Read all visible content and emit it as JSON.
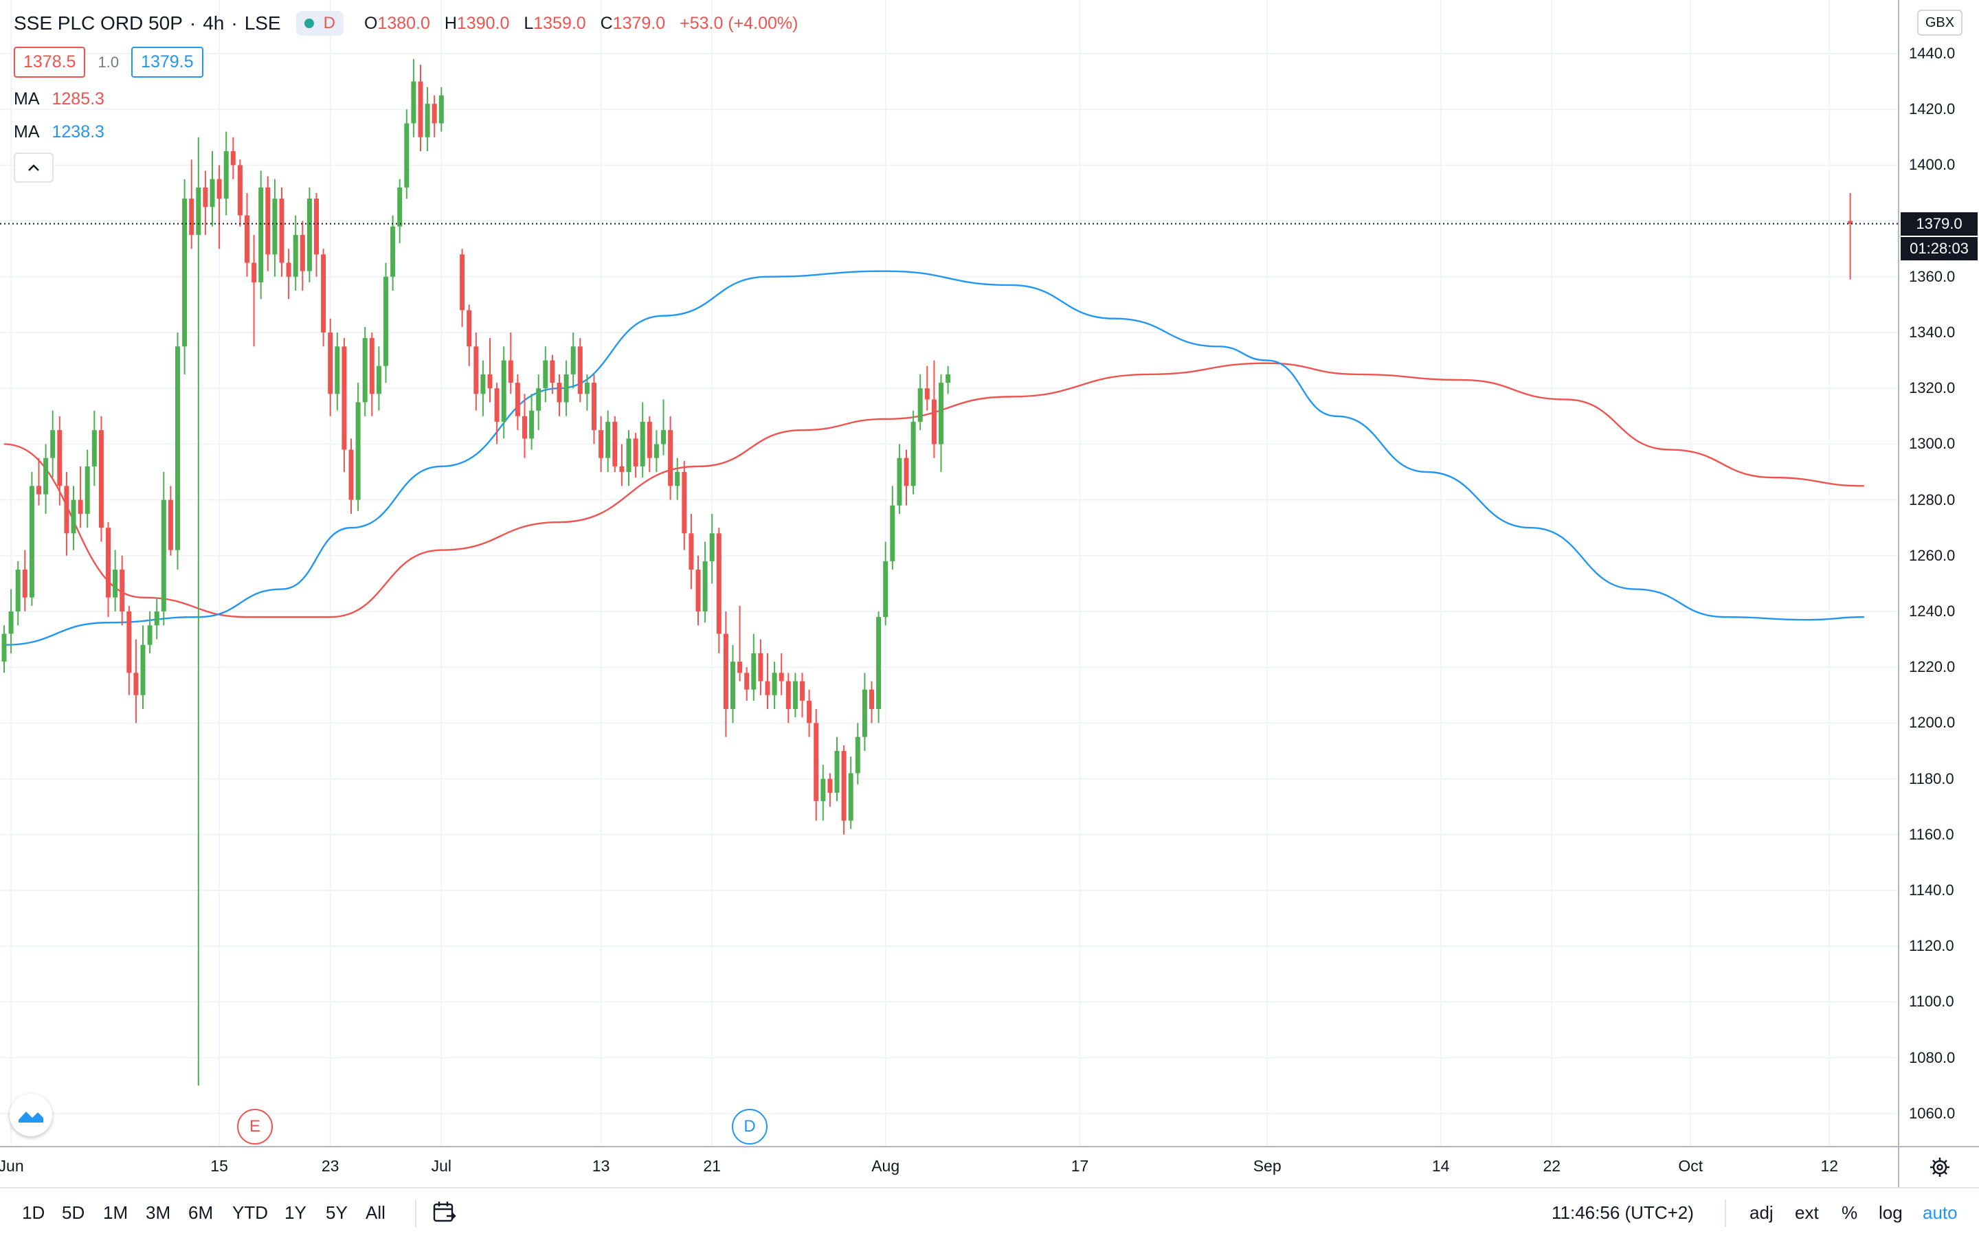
{
  "symbol": {
    "title": "SSE PLC ORD 50P",
    "interval": "4h",
    "exchange": "LSE",
    "status_letter": "D"
  },
  "ohlc": {
    "o_key": "O",
    "o": "1380.0",
    "h_key": "H",
    "h": "1390.0",
    "l_key": "L",
    "l": "1359.0",
    "c_key": "C",
    "c": "1379.0",
    "change": "+53.0 (+4.00%)"
  },
  "quote": {
    "bid": "1378.5",
    "spread": "1.0",
    "ask": "1379.5"
  },
  "indicators": [
    {
      "label": "MA",
      "value": "1285.3",
      "color": "#ef5350"
    },
    {
      "label": "MA",
      "value": "1238.3",
      "color": "#2196f3"
    }
  ],
  "price_axis": {
    "currency": "GBX",
    "ticks": [
      "1440.0",
      "1420.0",
      "1400.0",
      "1380.0",
      "1360.0",
      "1340.0",
      "1320.0",
      "1300.0",
      "1280.0",
      "1260.0",
      "1240.0",
      "1220.0",
      "1200.0",
      "1180.0",
      "1160.0",
      "1140.0",
      "1120.0",
      "1100.0",
      "1080.0",
      "1060.0"
    ],
    "current_price": "1379.0",
    "countdown": "01:28:03"
  },
  "time_axis": {
    "ticks": [
      "Jun",
      "15",
      "23",
      "Jul",
      "13",
      "21",
      "Aug",
      "17",
      "Sep",
      "14",
      "22",
      "Oct",
      "12"
    ]
  },
  "events": [
    {
      "letter": "E",
      "type": "earnings"
    },
    {
      "letter": "D",
      "type": "dividend"
    }
  ],
  "toolbar": {
    "ranges": [
      "1D",
      "5D",
      "1M",
      "3M",
      "6M",
      "YTD",
      "1Y",
      "5Y",
      "All"
    ],
    "clock": "11:46:56 (UTC+2)",
    "adj": "adj",
    "ext": "ext",
    "percent": "%",
    "log": "log",
    "auto": "auto"
  },
  "colors": {
    "up": "#26a69a",
    "up_candle": "#4caf50",
    "down": "#ef5350",
    "ma_fast": "#2196f3",
    "ma_slow": "#ef5350",
    "grid": "#f0f3fa"
  },
  "chart_data": {
    "type": "candlestick",
    "y_range": [
      1050,
      1450
    ],
    "x_ticks": [
      {
        "label": "Jun",
        "i": 1
      },
      {
        "label": "15",
        "i": 31
      },
      {
        "label": "23",
        "i": 47
      },
      {
        "label": "Jul",
        "i": 63
      },
      {
        "label": "13",
        "i": 86
      },
      {
        "label": "21",
        "i": 102
      },
      {
        "label": "Aug",
        "i": 127
      },
      {
        "label": "17",
        "i": 155
      },
      {
        "label": "Sep",
        "i": 182
      },
      {
        "label": "14",
        "i": 207
      },
      {
        "label": "22",
        "i": 223
      },
      {
        "label": "Oct",
        "i": 243
      },
      {
        "label": "12",
        "i": 263
      }
    ],
    "candles": [
      [
        1222,
        1235,
        1218,
        1232
      ],
      [
        1232,
        1248,
        1225,
        1240
      ],
      [
        1240,
        1258,
        1235,
        1255
      ],
      [
        1255,
        1262,
        1240,
        1245
      ],
      [
        1245,
        1290,
        1242,
        1285
      ],
      [
        1285,
        1295,
        1278,
        1282
      ],
      [
        1282,
        1300,
        1275,
        1295
      ],
      [
        1295,
        1312,
        1288,
        1305
      ],
      [
        1305,
        1310,
        1278,
        1285
      ],
      [
        1285,
        1290,
        1260,
        1268
      ],
      [
        1268,
        1285,
        1262,
        1280
      ],
      [
        1280,
        1292,
        1270,
        1275
      ],
      [
        1275,
        1298,
        1270,
        1292
      ],
      [
        1292,
        1312,
        1285,
        1305
      ],
      [
        1305,
        1310,
        1265,
        1270
      ],
      [
        1270,
        1272,
        1238,
        1245
      ],
      [
        1245,
        1262,
        1240,
        1255
      ],
      [
        1255,
        1260,
        1235,
        1240
      ],
      [
        1240,
        1242,
        1210,
        1218
      ],
      [
        1218,
        1230,
        1200,
        1210
      ],
      [
        1210,
        1235,
        1205,
        1228
      ],
      [
        1228,
        1240,
        1225,
        1235
      ],
      [
        1235,
        1245,
        1230,
        1240
      ],
      [
        1240,
        1290,
        1235,
        1280
      ],
      [
        1280,
        1285,
        1260,
        1262
      ],
      [
        1262,
        1340,
        1255,
        1335
      ],
      [
        1335,
        1395,
        1325,
        1388
      ],
      [
        1388,
        1402,
        1370,
        1375
      ],
      [
        1375,
        1410,
        1070,
        1392
      ],
      [
        1392,
        1398,
        1375,
        1385
      ],
      [
        1385,
        1405,
        1378,
        1395
      ],
      [
        1395,
        1400,
        1370,
        1388
      ],
      [
        1388,
        1412,
        1382,
        1405
      ],
      [
        1405,
        1410,
        1395,
        1400
      ],
      [
        1400,
        1402,
        1378,
        1382
      ],
      [
        1382,
        1390,
        1360,
        1365
      ],
      [
        1365,
        1375,
        1335,
        1358
      ],
      [
        1358,
        1398,
        1352,
        1392
      ],
      [
        1392,
        1396,
        1362,
        1368
      ],
      [
        1368,
        1395,
        1360,
        1388
      ],
      [
        1388,
        1392,
        1360,
        1365
      ],
      [
        1365,
        1370,
        1352,
        1360
      ],
      [
        1360,
        1382,
        1355,
        1375
      ],
      [
        1375,
        1380,
        1355,
        1362
      ],
      [
        1362,
        1392,
        1358,
        1388
      ],
      [
        1388,
        1390,
        1360,
        1368
      ],
      [
        1368,
        1370,
        1335,
        1340
      ],
      [
        1340,
        1345,
        1310,
        1318
      ],
      [
        1318,
        1340,
        1312,
        1335
      ],
      [
        1335,
        1338,
        1290,
        1298
      ],
      [
        1298,
        1302,
        1275,
        1280
      ],
      [
        1280,
        1322,
        1276,
        1315
      ],
      [
        1315,
        1342,
        1310,
        1338
      ],
      [
        1338,
        1340,
        1310,
        1318
      ],
      [
        1318,
        1335,
        1312,
        1328
      ],
      [
        1328,
        1365,
        1322,
        1360
      ],
      [
        1360,
        1382,
        1355,
        1378
      ],
      [
        1378,
        1395,
        1372,
        1392
      ],
      [
        1392,
        1420,
        1388,
        1415
      ],
      [
        1415,
        1438,
        1410,
        1430
      ],
      [
        1430,
        1436,
        1405,
        1410
      ],
      [
        1410,
        1428,
        1405,
        1422
      ],
      [
        1422,
        1425,
        1410,
        1415
      ],
      [
        1415,
        1428,
        1412,
        1425
      ],
      [
        1368,
        1370,
        1342,
        1348
      ],
      [
        1348,
        1350,
        1328,
        1335
      ],
      [
        1335,
        1340,
        1312,
        1318
      ],
      [
        1318,
        1330,
        1310,
        1325
      ],
      [
        1325,
        1338,
        1315,
        1320
      ],
      [
        1320,
        1322,
        1300,
        1308
      ],
      [
        1308,
        1335,
        1302,
        1330
      ],
      [
        1330,
        1340,
        1318,
        1322
      ],
      [
        1322,
        1325,
        1305,
        1310
      ],
      [
        1310,
        1318,
        1295,
        1302
      ],
      [
        1302,
        1318,
        1298,
        1312
      ],
      [
        1312,
        1325,
        1305,
        1320
      ],
      [
        1320,
        1335,
        1315,
        1330
      ],
      [
        1330,
        1332,
        1318,
        1322
      ],
      [
        1322,
        1325,
        1310,
        1315
      ],
      [
        1315,
        1330,
        1310,
        1325
      ],
      [
        1325,
        1340,
        1320,
        1335
      ],
      [
        1335,
        1338,
        1315,
        1318
      ],
      [
        1318,
        1325,
        1312,
        1322
      ],
      [
        1322,
        1325,
        1300,
        1305
      ],
      [
        1305,
        1310,
        1290,
        1295
      ],
      [
        1295,
        1312,
        1290,
        1308
      ],
      [
        1308,
        1310,
        1290,
        1292
      ],
      [
        1292,
        1300,
        1285,
        1290
      ],
      [
        1290,
        1305,
        1285,
        1302
      ],
      [
        1302,
        1304,
        1288,
        1292
      ],
      [
        1292,
        1315,
        1288,
        1308
      ],
      [
        1308,
        1310,
        1290,
        1295
      ],
      [
        1295,
        1305,
        1290,
        1300
      ],
      [
        1300,
        1316,
        1296,
        1305
      ],
      [
        1305,
        1310,
        1280,
        1285
      ],
      [
        1285,
        1295,
        1280,
        1290
      ],
      [
        1290,
        1294,
        1262,
        1268
      ],
      [
        1268,
        1275,
        1248,
        1255
      ],
      [
        1255,
        1260,
        1235,
        1240
      ],
      [
        1240,
        1265,
        1236,
        1258
      ],
      [
        1258,
        1275,
        1250,
        1268
      ],
      [
        1268,
        1270,
        1225,
        1232
      ],
      [
        1232,
        1240,
        1195,
        1205
      ],
      [
        1205,
        1228,
        1200,
        1222
      ],
      [
        1222,
        1242,
        1215,
        1218
      ],
      [
        1218,
        1220,
        1208,
        1212
      ],
      [
        1212,
        1232,
        1208,
        1225
      ],
      [
        1225,
        1230,
        1210,
        1215
      ],
      [
        1215,
        1225,
        1205,
        1210
      ],
      [
        1210,
        1222,
        1205,
        1218
      ],
      [
        1218,
        1225,
        1210,
        1215
      ],
      [
        1215,
        1218,
        1200,
        1205
      ],
      [
        1205,
        1218,
        1202,
        1215
      ],
      [
        1215,
        1218,
        1202,
        1208
      ],
      [
        1208,
        1212,
        1195,
        1200
      ],
      [
        1200,
        1205,
        1165,
        1172
      ],
      [
        1172,
        1185,
        1165,
        1180
      ],
      [
        1180,
        1182,
        1170,
        1175
      ],
      [
        1175,
        1195,
        1172,
        1190
      ],
      [
        1190,
        1192,
        1160,
        1165
      ],
      [
        1165,
        1188,
        1162,
        1182
      ],
      [
        1182,
        1200,
        1178,
        1195
      ],
      [
        1195,
        1218,
        1190,
        1212
      ],
      [
        1212,
        1215,
        1200,
        1205
      ],
      [
        1205,
        1240,
        1200,
        1238
      ],
      [
        1238,
        1265,
        1235,
        1258
      ],
      [
        1258,
        1285,
        1255,
        1278
      ],
      [
        1278,
        1300,
        1275,
        1295
      ],
      [
        1295,
        1298,
        1278,
        1285
      ],
      [
        1285,
        1312,
        1282,
        1308
      ],
      [
        1308,
        1325,
        1305,
        1320
      ],
      [
        1320,
        1328,
        1312,
        1316
      ],
      [
        1316,
        1330,
        1295,
        1300
      ],
      [
        1300,
        1325,
        1290,
        1322
      ],
      [
        1322,
        1328,
        1318,
        1325
      ],
      [
        1380,
        1390,
        1359,
        1379
      ]
    ],
    "ma_slow_points": [
      [
        0,
        1300
      ],
      [
        20,
        1245
      ],
      [
        35,
        1238
      ],
      [
        47,
        1238
      ],
      [
        63,
        1262
      ],
      [
        80,
        1272
      ],
      [
        100,
        1292
      ],
      [
        115,
        1305
      ],
      [
        127,
        1309
      ],
      [
        145,
        1317
      ],
      [
        165,
        1325
      ],
      [
        182,
        1329
      ],
      [
        195,
        1325
      ],
      [
        210,
        1323
      ],
      [
        225,
        1316
      ],
      [
        240,
        1298
      ],
      [
        255,
        1288
      ],
      [
        268,
        1285
      ]
    ],
    "ma_fast_points": [
      [
        0,
        1228
      ],
      [
        15,
        1236
      ],
      [
        28,
        1238
      ],
      [
        40,
        1248
      ],
      [
        50,
        1270
      ],
      [
        63,
        1292
      ],
      [
        80,
        1320
      ],
      [
        95,
        1346
      ],
      [
        110,
        1360
      ],
      [
        127,
        1362
      ],
      [
        145,
        1357
      ],
      [
        160,
        1345
      ],
      [
        175,
        1335
      ],
      [
        182,
        1330
      ],
      [
        192,
        1310
      ],
      [
        205,
        1290
      ],
      [
        220,
        1270
      ],
      [
        235,
        1248
      ],
      [
        248,
        1238
      ],
      [
        260,
        1237
      ],
      [
        268,
        1238
      ]
    ]
  }
}
